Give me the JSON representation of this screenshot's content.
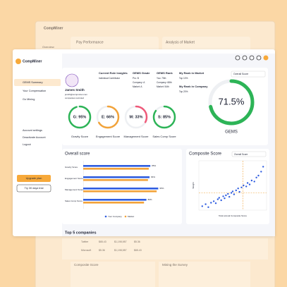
{
  "back": {
    "brand": "CompMiner",
    "nav": "Overview",
    "cards": [
      "Pay Performance",
      "Analysis of Market"
    ],
    "table_rows": [
      [
        "Twitter",
        "$65.43",
        "$1,198,987",
        "$5.36"
      ],
      [
        "Microsoft",
        "$5.36",
        "$1,198,987",
        "$65.43"
      ]
    ],
    "bottom_cards": [
      "Composite Score",
      "Mining the Survey"
    ]
  },
  "brand": "CompMiner",
  "sidebar": {
    "nav": [
      "GEMS Summary",
      "Your Compensation",
      "Go Mining"
    ],
    "bottom": [
      "Account settings",
      "Deactivate Account",
      "Logout"
    ],
    "upgrade": "Upgrade plan",
    "trial": "Try 30 days trial"
  },
  "profile": {
    "name": "James Smith",
    "email": "jsmith@compminer.com",
    "note": "companies recruited"
  },
  "insights": [
    {
      "title": "Current Role Insights",
      "lines": [
        "Individual Contributor"
      ]
    },
    {
      "title": "GEMS Grade",
      "lines": [
        "Pro: B",
        "Company: A",
        "Market: A"
      ]
    },
    {
      "title": "GEMS Rank",
      "lines": [
        "You: 75th",
        "Company: 68th",
        "Market: 54th"
      ]
    },
    {
      "title": "My Rank in Market",
      "lines": [
        "Top 10%"
      ]
    },
    {
      "title": "My Rank in Company",
      "lines": [
        "Top 20%"
      ]
    }
  ],
  "select": "Overall Score",
  "top_companies": "Top 5 companies",
  "chart_data": [
    {
      "type": "gauge",
      "categories": [
        "Gravity Score",
        "Engagement Score",
        "Management Score",
        "Sales Comp Score"
      ],
      "values": [
        95,
        66,
        33,
        85
      ],
      "value_labels": [
        "G: 95%",
        "E: 66%",
        "M: 33%",
        "S: 85%"
      ],
      "colors": [
        "#2db457",
        "#f2a33a",
        "#ef5a7a",
        "#2db457"
      ]
    },
    {
      "type": "gauge",
      "title": "GEMS",
      "values": [
        71.5
      ],
      "value_labels": [
        "71.5%"
      ],
      "color": "#2db457"
    },
    {
      "type": "bar",
      "title": "Overall score",
      "categories": [
        "Gravity Score",
        "Engagement Score",
        "Management Score",
        "Sales Comp Score"
      ],
      "xlim": [
        0,
        100
      ],
      "series": [
        {
          "name": "Your Company",
          "color": "#2f5de0",
          "values": [
            85,
            84,
            95,
            80
          ],
          "value_labels": [
            "85%",
            "84%",
            "95%",
            "80%"
          ]
        },
        {
          "name": "Market",
          "color": "#f2a33a",
          "values": [
            83,
            82,
            93,
            77
          ]
        }
      ]
    },
    {
      "type": "scatter",
      "title": "Composite Score",
      "select": "Overall Score",
      "xlabel": "Total annual Composite Score",
      "ylabel": "Weight",
      "xlim": [
        0,
        100
      ],
      "ylim": [
        0,
        100
      ],
      "ref_x": 65,
      "ref_y": 35,
      "color": "#2f5de0",
      "x": [
        5,
        10,
        14,
        18,
        22,
        25,
        28,
        30,
        33,
        36,
        38,
        40,
        43,
        45,
        48,
        50,
        52,
        55,
        58,
        60,
        63,
        66,
        70,
        72,
        75,
        78,
        82,
        85,
        88,
        92,
        95
      ],
      "y": [
        8,
        12,
        6,
        15,
        18,
        14,
        22,
        25,
        20,
        28,
        24,
        30,
        33,
        27,
        35,
        38,
        32,
        40,
        44,
        37,
        46,
        50,
        48,
        55,
        52,
        60,
        58,
        66,
        70,
        78,
        88
      ]
    }
  ]
}
